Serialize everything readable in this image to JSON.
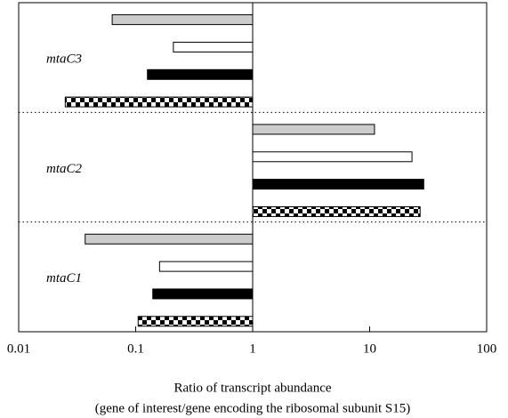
{
  "chart_data": {
    "type": "hbar",
    "categories": [
      "mtaC3",
      "mtaC2",
      "mtaC1"
    ],
    "series": [
      {
        "color": "#cccccc",
        "values": [
          0.063,
          11,
          0.037
        ]
      },
      {
        "color": "#ffffff",
        "values": [
          0.21,
          23,
          0.16
        ]
      },
      {
        "color": "#000000",
        "values": [
          0.126,
          29,
          0.14
        ]
      },
      {
        "color": "#000000",
        "pattern": "checkered",
        "values": [
          0.025,
          27,
          0.105
        ]
      }
    ],
    "xlim": [
      0.01,
      100
    ],
    "xticks": [
      0.01,
      0.1,
      1,
      10,
      100
    ],
    "xscale": "log",
    "baseline": 1,
    "xlabel": [
      "Ratio of transcript abundance",
      "(gene of interest/gene encoding the ribosomal subunit S15)"
    ],
    "group_separators": "dotted"
  }
}
